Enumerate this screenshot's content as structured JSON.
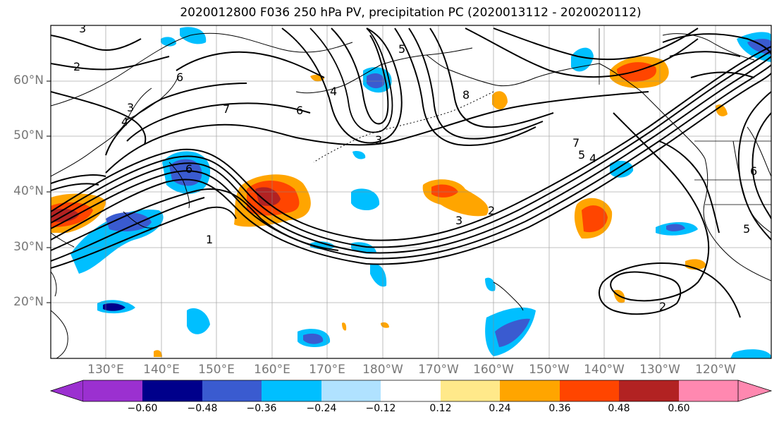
{
  "title": "2020012800 F036 250 hPa PV, precipitation PC (2020013112 - 2020020112)",
  "lat_labels": [
    "60°N",
    "50°N",
    "40°N",
    "30°N",
    "20°N"
  ],
  "lon_labels": [
    "130°E",
    "140°E",
    "150°E",
    "160°E",
    "170°E",
    "180°W",
    "170°W",
    "160°W",
    "150°W",
    "140°W",
    "130°W",
    "120°W"
  ],
  "colorbar": {
    "ticks": [
      "−0.60",
      "−0.48",
      "−0.36",
      "−0.24",
      "−0.12",
      "0.12",
      "0.24",
      "0.36",
      "0.48",
      "0.60"
    ],
    "colors": [
      "#9b30d0",
      "#00008b",
      "#3a5bd0",
      "#00bfff",
      "#b0e2ff",
      "#ffffff",
      "#ffe98a",
      "#ffa500",
      "#ff4500",
      "#b22222",
      "#ff88b0"
    ]
  },
  "contour_labels": [
    "2",
    "3",
    "3",
    "4",
    "5",
    "6",
    "7",
    "6",
    "8",
    "4",
    "3",
    "1",
    "7",
    "5",
    "4",
    "2",
    "3",
    "2",
    "6",
    "6",
    "5"
  ]
}
